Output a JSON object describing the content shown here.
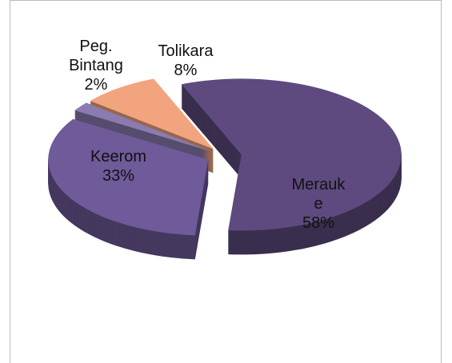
{
  "chart_data": {
    "type": "pie",
    "three_d": true,
    "categories": [
      "Merauke",
      "Keerom",
      "Peg. Bintang",
      "Tolikara"
    ],
    "values": [
      58,
      33,
      2,
      8
    ],
    "value_labels": [
      "58%",
      "33%",
      "2%",
      "8%"
    ],
    "colors": [
      "#5e4a7e",
      "#6f5a9a",
      "#8a7bb0",
      "#f2a47e"
    ]
  }
}
